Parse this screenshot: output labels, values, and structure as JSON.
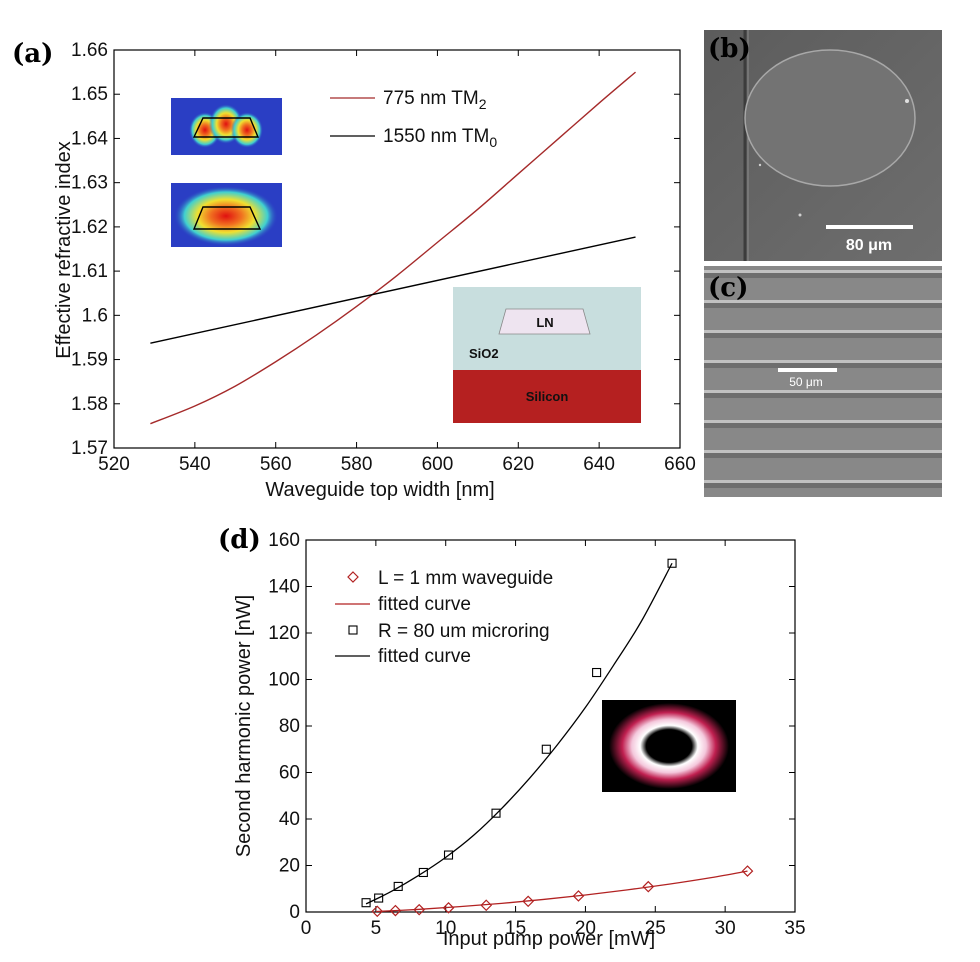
{
  "panels": {
    "a": "(a)",
    "b": "(b)",
    "c": "(c)",
    "d": "(d)"
  },
  "colors": {
    "tm2": "#a52a2a",
    "tm0": "#000000",
    "waveguide": "#b22222",
    "microring": "#000000",
    "sio2": "#c8dede",
    "silicon": "#b52020",
    "ln": "#eee4f0"
  },
  "scale_b": "80 μm",
  "scale_c": "50 μm",
  "stack_inset": {
    "ln": "LN",
    "sio2": "SiO2",
    "silicon": "Silicon"
  },
  "chart_data": [
    {
      "panel": "a",
      "type": "line",
      "xlabel": "Waveguide top width [nm]",
      "ylabel": "Effective refractive index",
      "xlim": [
        520,
        660
      ],
      "ylim": [
        1.57,
        1.66
      ],
      "xticks": [
        "520",
        "540",
        "560",
        "580",
        "600",
        "620",
        "640",
        "660"
      ],
      "yticks": [
        "1.57",
        "1.58",
        "1.59",
        "1.6",
        "1.61",
        "1.62",
        "1.63",
        "1.64",
        "1.65",
        "1.66"
      ],
      "grid": false,
      "legend_position": "top-right",
      "series": [
        {
          "name": "775 nm TM2",
          "name_base": "775 nm TM",
          "name_sub": "2",
          "x": [
            529,
            540,
            550,
            560,
            570,
            580,
            590,
            600,
            610,
            620,
            630,
            640,
            649
          ],
          "y": [
            1.5755,
            1.5795,
            1.584,
            1.5895,
            1.5955,
            1.602,
            1.609,
            1.6165,
            1.624,
            1.632,
            1.64,
            1.648,
            1.655
          ]
        },
        {
          "name": "1550 nm TM0",
          "name_base": "1550 nm TM",
          "name_sub": "0",
          "x": [
            529,
            649
          ],
          "y": [
            1.5937,
            1.6177
          ]
        }
      ]
    },
    {
      "panel": "d",
      "type": "scatter",
      "xlabel": "Input pump power [mW]",
      "ylabel": "Second harmonic power [nW]",
      "xlim": [
        0,
        35
      ],
      "ylim": [
        0,
        160
      ],
      "xticks": [
        "0",
        "5",
        "10",
        "15",
        "20",
        "25",
        "30",
        "35"
      ],
      "yticks": [
        "0",
        "20",
        "40",
        "60",
        "80",
        "100",
        "120",
        "140",
        "160"
      ],
      "grid": false,
      "legend_position": "top-left",
      "series": [
        {
          "name": "L = 1 mm waveguide",
          "marker": "diamond",
          "x": [
            5.1,
            6.4,
            8.1,
            10.2,
            12.9,
            15.9,
            19.5,
            24.5,
            31.6
          ],
          "y": [
            0.3,
            0.6,
            1.0,
            1.8,
            2.9,
            4.6,
            6.9,
            10.9,
            17.6
          ]
        },
        {
          "name": "fitted curve",
          "fit_of": "L = 1 mm waveguide",
          "x": [
            5,
            8,
            11,
            14,
            17,
            20,
            23,
            26,
            29,
            31.6
          ],
          "y": [
            0.2,
            1.1,
            2.3,
            3.7,
            5.4,
            7.3,
            9.5,
            12.0,
            14.8,
            17.6
          ]
        },
        {
          "name": "R = 80 um microring",
          "marker": "square",
          "x": [
            4.3,
            5.2,
            6.6,
            8.4,
            10.2,
            13.6,
            17.2,
            20.8,
            26.2
          ],
          "y": [
            4.0,
            6.0,
            11.0,
            17.0,
            24.5,
            42.5,
            70.0,
            103.0,
            150.0
          ]
        },
        {
          "name": "fitted curve",
          "fit_of": "R = 80 um microring",
          "x": [
            4.3,
            6,
            8,
            10,
            12,
            14,
            16,
            18,
            20,
            22,
            24,
            26.2
          ],
          "y": [
            3.5,
            8.5,
            15.5,
            23.5,
            33.0,
            44.5,
            57.5,
            72.0,
            88.0,
            106.0,
            125.0,
            150.0
          ]
        }
      ]
    }
  ]
}
